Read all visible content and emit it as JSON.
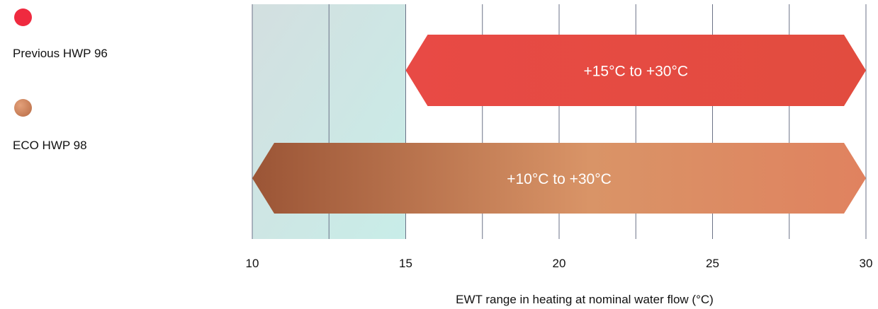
{
  "chart_data": {
    "type": "bar",
    "orientation": "horizontal-range",
    "series": [
      {
        "name": "Previous HWP 96",
        "start": 15,
        "end": 30,
        "label": "+15°C to +30°C",
        "color": "#e34c43"
      },
      {
        "name": "ECO HWP 98",
        "start": 10,
        "end": 30,
        "label": "+10°C to +30°C",
        "color": "#d98a62"
      }
    ],
    "highlight_band": {
      "start": 10,
      "end": 15,
      "color": "#c9ebe6"
    },
    "xlim": [
      10,
      30
    ],
    "xticks": [
      10,
      15,
      20,
      25,
      30
    ],
    "minor_gridlines": [
      12.5,
      17.5,
      22.5,
      27.5
    ],
    "grid": true,
    "xlabel": "EWT range in heating at nominal water flow (°C)",
    "legend_position": "left"
  },
  "colors": {
    "previous_start": "#e84a45",
    "previous_end": "#e24c3f",
    "eco_dark": "#9b5536",
    "eco_mid": "#d99467",
    "eco_light": "#e0825f",
    "legend_previous": "#ef2a3f",
    "legend_eco": "#c87a52",
    "gridline": "#6b7287"
  }
}
